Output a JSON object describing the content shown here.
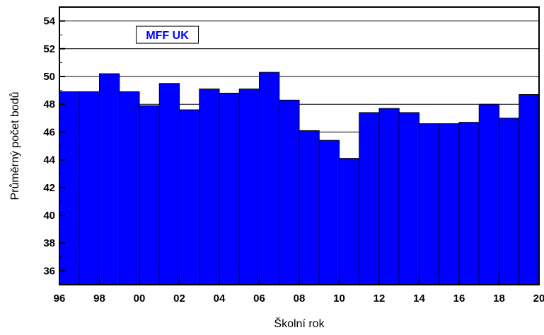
{
  "chart_data": {
    "type": "bar",
    "title": "MFF UK",
    "xlabel": "Školní rok",
    "ylabel": "Průměrný počet bodů",
    "xlim": [
      1996,
      2020
    ],
    "ylim": [
      35,
      55
    ],
    "grid": true,
    "x_ticks": [
      "96",
      "98",
      "00",
      "02",
      "04",
      "06",
      "08",
      "10",
      "12",
      "14",
      "16",
      "18",
      "20"
    ],
    "y_ticks": [
      "36",
      "38",
      "40",
      "42",
      "44",
      "46",
      "48",
      "50",
      "52",
      "54"
    ],
    "x": [
      1996,
      1997,
      1998,
      1999,
      2000,
      2001,
      2002,
      2003,
      2004,
      2005,
      2006,
      2007,
      2008,
      2009,
      2010,
      2011,
      2012,
      2013,
      2014,
      2015,
      2016,
      2017,
      2018,
      2019
    ],
    "values": [
      48.9,
      48.9,
      50.2,
      48.9,
      47.9,
      49.5,
      47.6,
      49.1,
      48.8,
      49.1,
      50.3,
      48.3,
      46.1,
      45.4,
      44.1,
      47.4,
      47.7,
      47.4,
      46.6,
      46.6,
      46.7,
      48.0,
      47.0,
      48.7
    ],
    "colors": {
      "bar_fill": "#0000ff",
      "bar_stroke": "#000000",
      "grid": "#000000",
      "background": "#ffffff"
    }
  }
}
